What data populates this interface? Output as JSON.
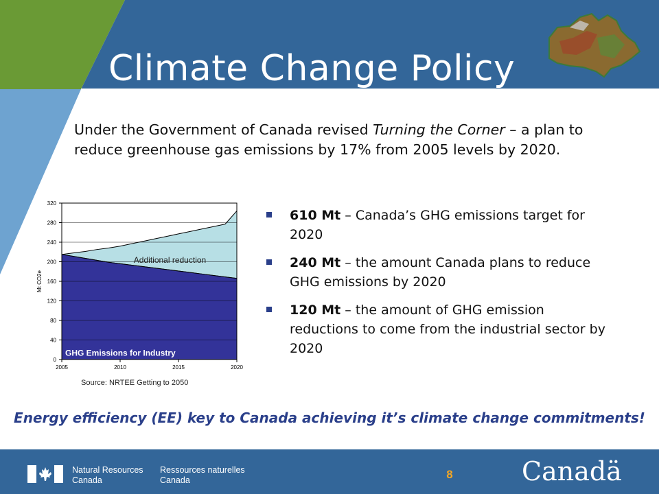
{
  "slide": {
    "title": "Climate Change Policy",
    "intro_prefix": "Under the Government of Canada revised ",
    "intro_italic": "Turning the Corner",
    "intro_suffix": " –  a plan to reduce greenhouse gas emissions by 17% from 2005 levels by 2020.",
    "bullets": [
      {
        "bold": "610 Mt",
        "text": " – Canada’s GHG emissions target for 2020"
      },
      {
        "bold": "240 Mt",
        "text": " – the amount Canada plans to reduce GHG emissions by 2020"
      },
      {
        "bold": "120 Mt",
        "text": " – the amount of GHG emission reductions to come from the industrial sector by 2020"
      }
    ],
    "tagline": "Energy efficiency (EE) key to Canada achieving it’s climate change commitments!",
    "page_number": "8"
  },
  "footer": {
    "dept_en_line1": "Natural Resources",
    "dept_en_line2": "Canada",
    "dept_fr_line1": "Ressources naturelles",
    "dept_fr_line2": "Canada",
    "wordmark": "Canadä",
    "flag_icon": "canada-flag-icon"
  },
  "colors": {
    "header_blue": "#336699",
    "header_green": "#6a9a35",
    "light_blue_band": "#6ea3d0",
    "emissions_fill": "#333399",
    "reduction_fill": "#b7dfe5",
    "tagline": "#2a3f8a",
    "page_number": "#f5a623"
  },
  "chart_data": {
    "type": "area",
    "x": [
      2005,
      2006,
      2007,
      2008,
      2009,
      2010,
      2011,
      2012,
      2013,
      2014,
      2015,
      2016,
      2017,
      2018,
      2019,
      2020
    ],
    "series": [
      {
        "name": "GHG Emissions for Industry",
        "values": [
          215,
          211,
          207,
          203,
          199,
          196,
          193,
          190,
          187,
          184,
          181,
          178,
          175,
          172,
          169,
          166
        ]
      },
      {
        "name": "Additional reduction",
        "values": [
          0,
          7,
          14,
          21,
          28,
          36,
          44,
          52,
          60,
          68,
          76,
          84,
          92,
          100,
          108,
          138
        ]
      }
    ],
    "upper_line": [
      215,
      218,
      221,
      225,
      228,
      232,
      237,
      242,
      247,
      252,
      257,
      262,
      267,
      272,
      277,
      304
    ],
    "xticks": [
      "2005",
      "2010",
      "2015",
      "2020"
    ],
    "yticks": [
      "0",
      "40",
      "80",
      "120",
      "160",
      "200",
      "240",
      "280",
      "320"
    ],
    "ylabel": "Mt CO2e",
    "ylim": [
      0,
      320
    ],
    "xlim": [
      2005,
      2020
    ],
    "grid": true,
    "annotations": [
      "Additional reduction",
      "GHG Emissions for Industry"
    ],
    "source": "Source: NRTEE  Getting to 2050"
  }
}
